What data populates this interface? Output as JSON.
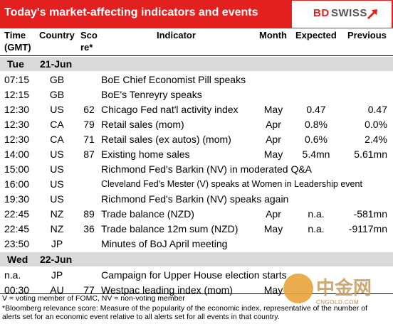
{
  "header": {
    "title": "Today's market-affecting indicators and events",
    "brand_red": "BD",
    "brand_gray": "SWISS"
  },
  "columns": {
    "time": [
      "Time",
      "(GMT)"
    ],
    "country": "Country",
    "score": [
      "Sco",
      "re*"
    ],
    "indicator": "Indicator",
    "month": "Month",
    "expected": "Expected",
    "previous": "Previous"
  },
  "days": [
    {
      "day": "Tue",
      "date": "21-Jun",
      "rows": [
        {
          "time": "07:15",
          "country": "GB",
          "score": "",
          "indicator": "BoE Chief Economist Pill speaks",
          "month": "",
          "expected": "",
          "previous": ""
        },
        {
          "time": "12:15",
          "country": "GB",
          "score": "",
          "indicator": "BoE's Tenreyry speaks",
          "month": "",
          "expected": "",
          "previous": ""
        },
        {
          "time": "12:30",
          "country": "US",
          "score": "62",
          "indicator": "Chicago Fed nat'l activity index",
          "month": "May",
          "expected": "0.47",
          "previous": "0.47"
        },
        {
          "time": "12:30",
          "country": "CA",
          "score": "79",
          "indicator": "Retail sales (mom)",
          "month": "Apr",
          "expected": "0.8%",
          "previous": "0.0%"
        },
        {
          "time": "12:30",
          "country": "CA",
          "score": "71",
          "indicator": "Retail sales (ex autos) (mom)",
          "month": "Apr",
          "expected": "0.6%",
          "previous": "2.4%"
        },
        {
          "time": "14:00",
          "country": "US",
          "score": "87",
          "indicator": "Existing home sales",
          "month": "May",
          "expected": "5.4mn",
          "previous": "5.61mn"
        },
        {
          "time": "15:00",
          "country": "US",
          "score": "",
          "indicator": "Richmond Fed's Barkin (NV) in moderated Q&A",
          "month": "",
          "expected": "",
          "previous": ""
        },
        {
          "time": "16:00",
          "country": "US",
          "score": "",
          "indicator": "Cleveland Fed's Mester (V) speaks at Women in Leadership event",
          "month": "",
          "expected": "",
          "previous": ""
        },
        {
          "time": "19:30",
          "country": "US",
          "score": "",
          "indicator": "Richmond Fed's Barkin (NV) speaks again",
          "month": "",
          "expected": "",
          "previous": ""
        },
        {
          "time": "22:45",
          "country": "NZ",
          "score": "89",
          "indicator": "Trade balance (NZD)",
          "month": "Apr",
          "expected": "n.a.",
          "previous": "-581mn"
        },
        {
          "time": "22:45",
          "country": "NZ",
          "score": "36",
          "indicator": "Trade balance 12m sum (NZD)",
          "month": "May",
          "expected": "n.a.",
          "previous": "-9117mn"
        },
        {
          "time": "23:50",
          "country": "JP",
          "score": "",
          "indicator": "Minutes of BoJ April meeting",
          "month": "",
          "expected": "",
          "previous": ""
        }
      ]
    },
    {
      "day": "Wed",
      "date": "22-Jun",
      "rows": [
        {
          "time": "n.a.",
          "country": "JP",
          "score": "",
          "indicator": "Campaign for Upper House election starts",
          "month": "",
          "expected": "",
          "previous": ""
        },
        {
          "time": "00:30",
          "country": "AU",
          "score": "77",
          "indicator": "Westpac leading index (mom)",
          "month": "May",
          "expected": "",
          "previous": ""
        }
      ]
    }
  ],
  "footnotes": [
    "V = voting member of FOMC, NV = non-voting member",
    "*Bloomberg relevance score:  Measure of the popularity of the economic index, representative of the number of",
    "alerts set for an economic event relative to all alerts set for all events in that country."
  ],
  "watermark": {
    "text": "中金网",
    "sub": "CNGOLD.COM"
  },
  "colors": {
    "header_red": "#e1201f",
    "day_band": "#d9d9d9",
    "watermark_gold": "#e8a33a"
  }
}
